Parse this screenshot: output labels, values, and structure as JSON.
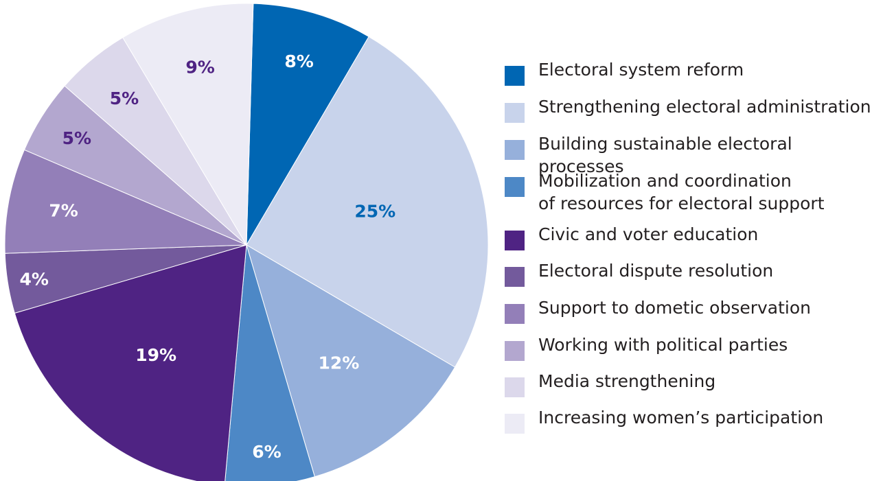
{
  "chart_data": {
    "type": "pie",
    "title": "",
    "slices": [
      {
        "label": "Electoral system reform",
        "value": 8,
        "display": "8%",
        "color": "#0066b3",
        "text_color": "#ffffff"
      },
      {
        "label": "Strengthening electoral administration",
        "value": 25,
        "display": "25%",
        "color": "#c8d3eb",
        "text_color": "#0066b3"
      },
      {
        "label": "Building sustainable electoral processes",
        "value": 12,
        "display": "12%",
        "color": "#96b0db",
        "text_color": "#ffffff"
      },
      {
        "label": "Mobilization and coordination\nof resources for electoral support",
        "value": 6,
        "display": "6%",
        "color": "#4d88c6",
        "text_color": "#ffffff"
      },
      {
        "label": "Civic and voter education",
        "value": 19,
        "display": "19%",
        "color": "#4f2383",
        "text_color": "#ffffff"
      },
      {
        "label": "Electoral dispute resolution",
        "value": 4,
        "display": "4%",
        "color": "#735a9c",
        "text_color": "#ffffff"
      },
      {
        "label": "Support to dometic observation",
        "value": 7,
        "display": "7%",
        "color": "#937fb8",
        "text_color": "#ffffff"
      },
      {
        "label": "Working with political parties",
        "value": 5,
        "display": "5%",
        "color": "#b3a7cf",
        "text_color": "#4f2383"
      },
      {
        "label": "Media strengthening",
        "value": 5,
        "display": "5%",
        "color": "#dcd8eb",
        "text_color": "#4f2383"
      },
      {
        "label": "Increasing women’s participation",
        "value": 9,
        "display": "9%",
        "color": "#ecebf5",
        "text_color": "#4f2383"
      }
    ],
    "legend_position": "right"
  }
}
